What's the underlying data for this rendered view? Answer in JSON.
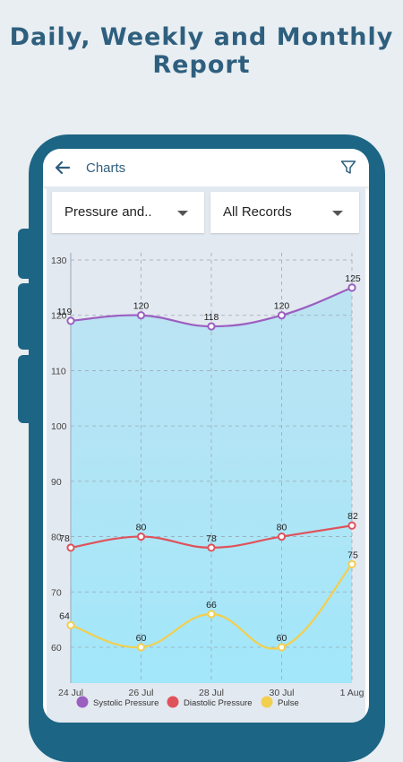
{
  "headline": {
    "line1": "Daily, Weekly and Monthly",
    "line2": "Report"
  },
  "appbar": {
    "title": "Charts",
    "back_icon": "arrow-left-icon",
    "filter_icon": "filter-icon"
  },
  "filters": {
    "type_selected": "Pressure and..",
    "range_selected": "All Records"
  },
  "colors": {
    "systolic": "#9b5fc0",
    "diastolic": "#e0525a",
    "pulse": "#f2cf4f",
    "fill": "#a9e4f6",
    "accent": "#2f5f7e"
  },
  "chart_data": {
    "type": "line",
    "x": [
      "24 Jul",
      "26 Jul",
      "28 Jul",
      "30 Jul",
      "1 Aug"
    ],
    "ylim": [
      55,
      130
    ],
    "yticks": [
      60,
      70,
      80,
      90,
      100,
      110,
      120,
      130
    ],
    "series": [
      {
        "name": "Systolic Pressure",
        "values": [
          119,
          120,
          118,
          120,
          125
        ]
      },
      {
        "name": "Diastolic Pressure",
        "values": [
          78,
          80,
          78,
          80,
          82
        ]
      },
      {
        "name": "Pulse",
        "values": [
          64,
          60,
          66,
          60,
          75
        ]
      }
    ],
    "grid": true,
    "legend": "bottom"
  }
}
